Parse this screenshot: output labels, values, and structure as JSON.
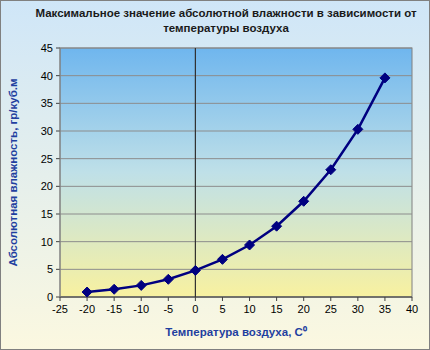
{
  "chart_data": {
    "type": "line",
    "title": "Максимальное значение абсолютной влажности в зависимости от\nтемпературы воздуха",
    "x_label": "Температура воздуха, С⁰",
    "y_label": "Абсолютная влажность, гр/куб.м",
    "x": [
      -20,
      -15,
      -10,
      -5,
      0,
      5,
      10,
      15,
      20,
      25,
      30,
      35
    ],
    "values": [
      0.9,
      1.4,
      2.1,
      3.2,
      4.8,
      6.8,
      9.4,
      12.8,
      17.3,
      23.0,
      30.3,
      39.6
    ],
    "color": "#000080",
    "marker": "diamond",
    "line_style": "solid",
    "xlim": [
      -25,
      40
    ],
    "xticks": [
      -25,
      -20,
      -15,
      -10,
      -5,
      0,
      5,
      10,
      15,
      20,
      25,
      30,
      35,
      40
    ],
    "ylim": [
      0,
      45
    ],
    "yticks": [
      0,
      5,
      10,
      15,
      20,
      25,
      30,
      35,
      40,
      45
    ],
    "grid": true
  }
}
